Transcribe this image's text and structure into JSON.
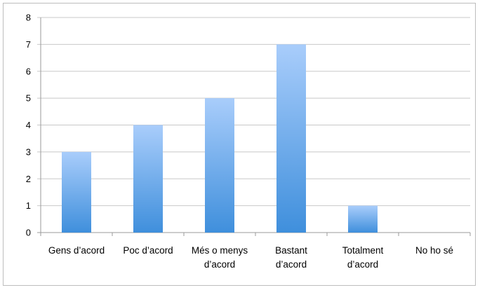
{
  "chart_data": {
    "type": "bar",
    "title": "",
    "xlabel": "",
    "ylabel": "",
    "categories": [
      "Gens d’acord",
      "Poc d’acord",
      "Més o menys d’acord",
      "Bastant d’acord",
      "Totalment d’acord",
      "No ho sé"
    ],
    "category_lines": [
      [
        "Gens d’acord"
      ],
      [
        "Poc d’acord"
      ],
      [
        "Més o menys",
        "d’acord"
      ],
      [
        "Bastant",
        "d’acord"
      ],
      [
        "Totalment",
        "d’acord"
      ],
      [
        "No ho sé"
      ]
    ],
    "values": [
      3,
      4,
      5,
      7,
      1,
      0
    ],
    "ylim": [
      0,
      8
    ],
    "yticks": [
      0,
      1,
      2,
      3,
      4,
      5,
      6,
      7,
      8
    ],
    "grid": true,
    "legend": "none",
    "bar_color_top": "#a9cdfb",
    "bar_color_bottom": "#3f8fdc",
    "grid_color": "#c8c8c8"
  }
}
